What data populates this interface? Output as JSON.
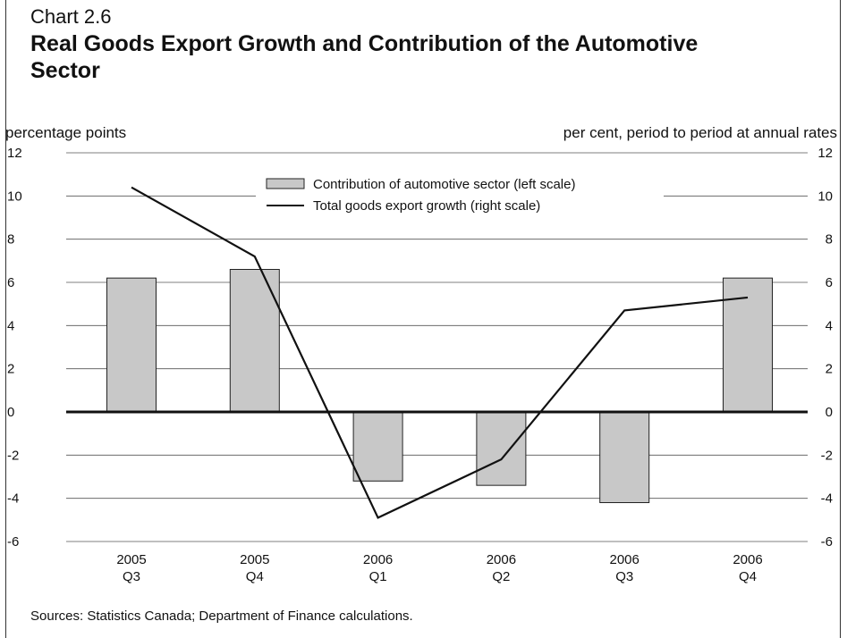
{
  "header": {
    "chart_number": "Chart 2.6",
    "title": "Real Goods Export Growth and Contribution of the Automotive Sector"
  },
  "footer": {
    "source": "Sources: Statistics Canada; Department of Finance calculations."
  },
  "chart_data": {
    "type": "bar",
    "categories": [
      {
        "year": "2005",
        "quarter": "Q3"
      },
      {
        "year": "2005",
        "quarter": "Q4"
      },
      {
        "year": "2006",
        "quarter": "Q1"
      },
      {
        "year": "2006",
        "quarter": "Q2"
      },
      {
        "year": "2006",
        "quarter": "Q3"
      },
      {
        "year": "2006",
        "quarter": "Q4"
      }
    ],
    "series": [
      {
        "name": "Contribution of automotive sector (left scale)",
        "type": "bar",
        "axis": "left",
        "values": [
          6.2,
          6.6,
          -3.2,
          -3.4,
          -4.2,
          6.2
        ],
        "color": "#c8c8c8"
      },
      {
        "name": "Total goods export growth (right scale)",
        "type": "line",
        "axis": "right",
        "values": [
          10.4,
          7.2,
          -4.9,
          -2.2,
          4.7,
          5.3
        ],
        "color": "#111111"
      }
    ],
    "ylabel_left": "percentage points",
    "ylabel_right": "per cent, period to period at annual rates",
    "ylim": [
      -6,
      12
    ],
    "yticks": [
      12,
      10,
      8,
      6,
      4,
      2,
      0,
      -2,
      -4,
      -6
    ],
    "grid": true,
    "legend_position": "top-center"
  }
}
